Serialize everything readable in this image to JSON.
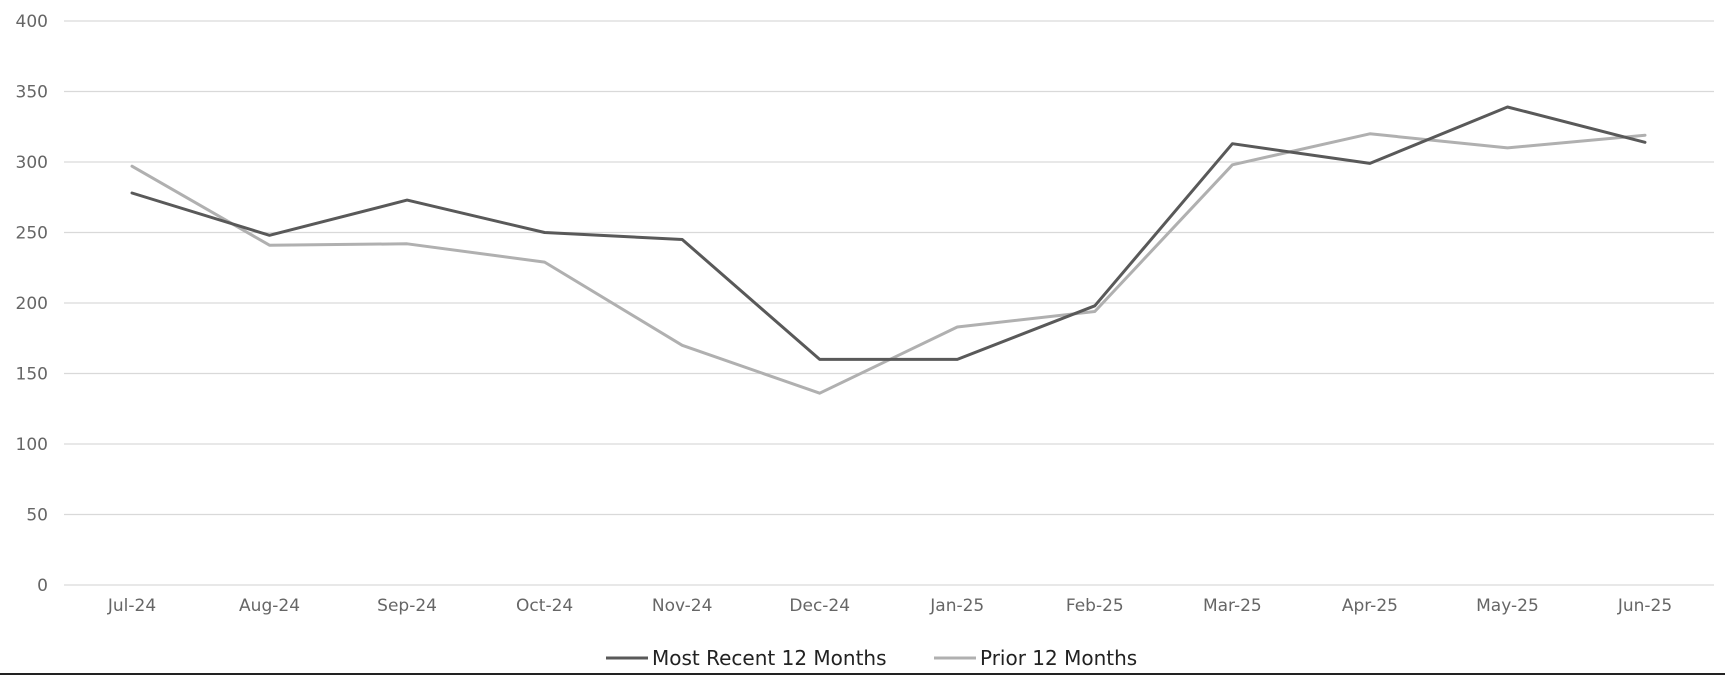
{
  "chart_data": {
    "type": "line",
    "title": "",
    "xlabel": "",
    "ylabel": "",
    "categories": [
      "Jul-24",
      "Aug-24",
      "Sep-24",
      "Oct-24",
      "Nov-24",
      "Dec-24",
      "Jan-25",
      "Feb-25",
      "Mar-25",
      "Apr-25",
      "May-25",
      "Jun-25"
    ],
    "ylim": [
      0,
      400
    ],
    "yticks": [
      "0",
      "50",
      "100",
      "150",
      "200",
      "250",
      "300",
      "350",
      "400"
    ],
    "grid": true,
    "legend_position": "bottom-center",
    "series": [
      {
        "name": "Most Recent 12 Months",
        "color": "#595959",
        "values": [
          278,
          248,
          273,
          250,
          245,
          160,
          160,
          198,
          313,
          299,
          339,
          314
        ]
      },
      {
        "name": "Prior 12 Months",
        "color": "#b0b0b0",
        "values": [
          297,
          241,
          242,
          229,
          170,
          136,
          183,
          194,
          298,
          320,
          310,
          319
        ]
      }
    ]
  }
}
